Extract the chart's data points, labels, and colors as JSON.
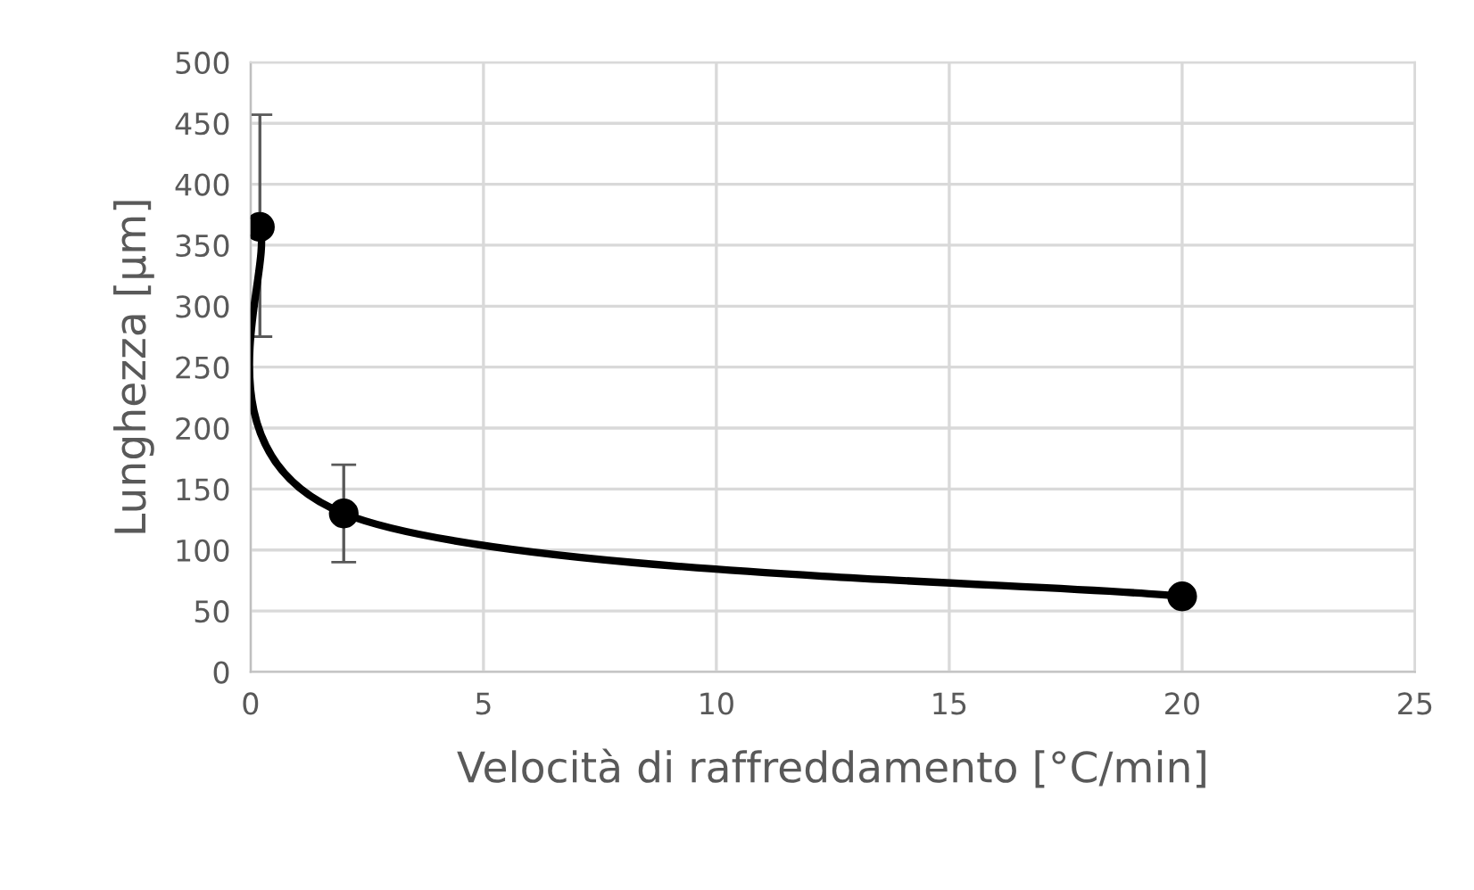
{
  "chart_data": {
    "type": "line",
    "xlabel": "Velocità di raffreddamento [°C/min]",
    "ylabel": "Lunghezza [µm]",
    "x": [
      0.2,
      2,
      20
    ],
    "series": [
      {
        "color": "#000000",
        "values": [
          365,
          130,
          62
        ],
        "errors": [
          [
            275,
            457
          ],
          [
            90,
            170
          ],
          null
        ]
      }
    ],
    "xlim": [
      0,
      25
    ],
    "xticks": [
      0,
      5,
      10,
      15,
      20,
      25
    ],
    "ylim": [
      0,
      500
    ],
    "yticks": [
      0,
      50,
      100,
      150,
      200,
      250,
      300,
      350,
      400,
      450,
      500
    ],
    "grid": true,
    "marker": "circle",
    "line_style": "solid"
  }
}
